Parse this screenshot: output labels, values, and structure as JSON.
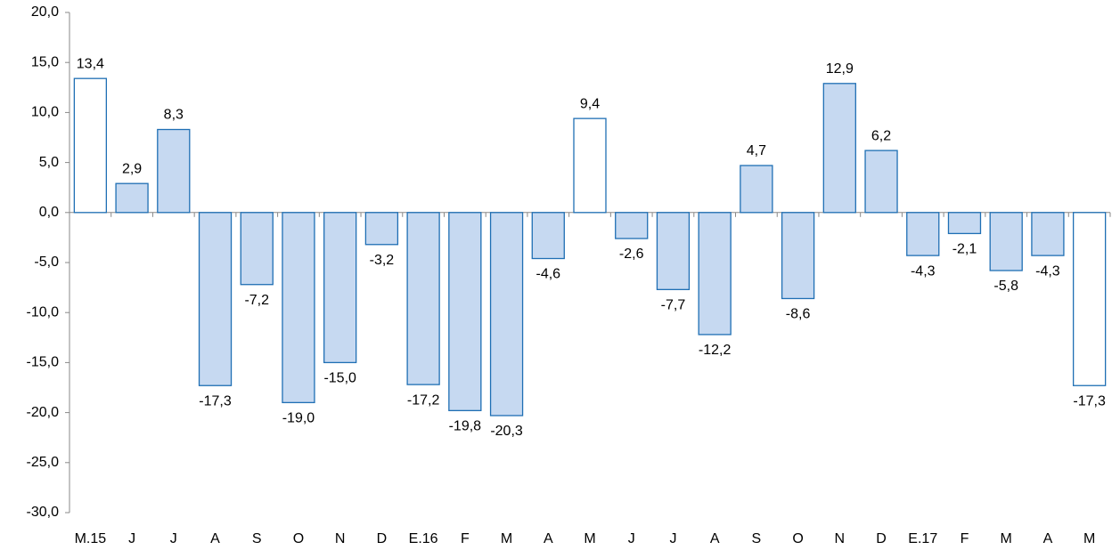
{
  "chart_data": {
    "type": "bar",
    "categories": [
      "M.15",
      "J",
      "J",
      "A",
      "S",
      "O",
      "N",
      "D",
      "E.16",
      "F",
      "M",
      "A",
      "M",
      "J",
      "J",
      "A",
      "S",
      "O",
      "N",
      "D",
      "E.17",
      "F",
      "M",
      "A",
      "M"
    ],
    "values": [
      13.4,
      2.9,
      8.3,
      -17.3,
      -7.2,
      -19.0,
      -15.0,
      -3.2,
      -17.2,
      -19.8,
      -20.3,
      -4.6,
      9.4,
      -2.6,
      -7.7,
      -12.2,
      4.7,
      -8.6,
      12.9,
      6.2,
      -4.3,
      -2.1,
      -5.8,
      -4.3,
      -17.3
    ],
    "value_labels": [
      "13,4",
      "2,9",
      "8,3",
      "-17,3",
      "-7,2",
      "-19,0",
      "-15,0",
      "-3,2",
      "-17,2",
      "-19,8",
      "-20,3",
      "-4,6",
      "9,4",
      "-2,6",
      "-7,7",
      "-12,2",
      "4,7",
      "-8,6",
      "12,9",
      "6,2",
      "-4,3",
      "-2,1",
      "-5,8",
      "-4,3",
      "-17,3"
    ],
    "colors": [
      "#ffffff",
      "#c6d9f1",
      "#c6d9f1",
      "#c6d9f1",
      "#c6d9f1",
      "#c6d9f1",
      "#c6d9f1",
      "#c6d9f1",
      "#c6d9f1",
      "#c6d9f1",
      "#c6d9f1",
      "#c6d9f1",
      "#ffffff",
      "#c6d9f1",
      "#c6d9f1",
      "#c6d9f1",
      "#c6d9f1",
      "#c6d9f1",
      "#c6d9f1",
      "#c6d9f1",
      "#c6d9f1",
      "#c6d9f1",
      "#c6d9f1",
      "#c6d9f1",
      "#ffffff"
    ],
    "edge_color": "#1f6fb4",
    "ylim": [
      -30,
      20
    ],
    "yticks": [
      {
        "value": -30,
        "label": "-30,0"
      },
      {
        "value": -25,
        "label": "-25,0"
      },
      {
        "value": -20,
        "label": "-20,0"
      },
      {
        "value": -15,
        "label": "-15,0"
      },
      {
        "value": -10,
        "label": "-10,0"
      },
      {
        "value": -5,
        "label": "-5,0"
      },
      {
        "value": 0,
        "label": "0,0"
      },
      {
        "value": 5,
        "label": "5,0"
      },
      {
        "value": 10,
        "label": "10,0"
      },
      {
        "value": 15,
        "label": "15,0"
      },
      {
        "value": 20,
        "label": "20,0"
      }
    ],
    "grid": false
  }
}
